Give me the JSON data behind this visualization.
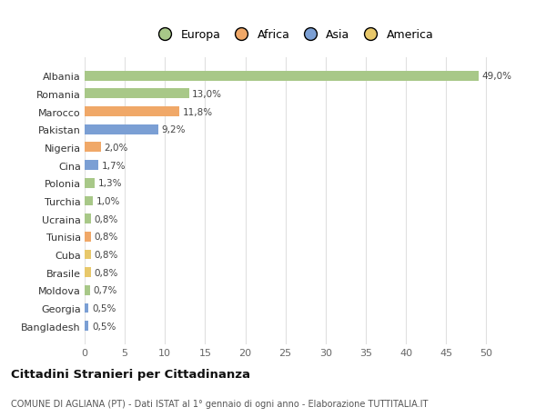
{
  "categories": [
    "Bangladesh",
    "Georgia",
    "Moldova",
    "Brasile",
    "Cuba",
    "Tunisia",
    "Ucraina",
    "Turchia",
    "Polonia",
    "Cina",
    "Nigeria",
    "Pakistan",
    "Marocco",
    "Romania",
    "Albania"
  ],
  "values": [
    0.5,
    0.5,
    0.7,
    0.8,
    0.8,
    0.8,
    0.8,
    1.0,
    1.3,
    1.7,
    2.0,
    9.2,
    11.8,
    13.0,
    49.0
  ],
  "colors": [
    "#7b9fd4",
    "#7b9fd4",
    "#a8c888",
    "#e8c86a",
    "#e8c86a",
    "#f0a868",
    "#a8c888",
    "#a8c888",
    "#a8c888",
    "#7b9fd4",
    "#f0a868",
    "#7b9fd4",
    "#f0a868",
    "#a8c888",
    "#a8c888"
  ],
  "labels": [
    "0,5%",
    "0,5%",
    "0,7%",
    "0,8%",
    "0,8%",
    "0,8%",
    "0,8%",
    "1,0%",
    "1,3%",
    "1,7%",
    "2,0%",
    "9,2%",
    "11,8%",
    "13,0%",
    "49,0%"
  ],
  "legend_names": [
    "Europa",
    "Africa",
    "Asia",
    "America"
  ],
  "legend_colors": [
    "#a8c888",
    "#f0a868",
    "#7b9fd4",
    "#e8c86a"
  ],
  "title": "Cittadini Stranieri per Cittadinanza",
  "subtitle": "COMUNE DI AGLIANA (PT) - Dati ISTAT al 1° gennaio di ogni anno - Elaborazione TUTTITALIA.IT",
  "xlim": [
    0,
    52
  ],
  "xticks": [
    0,
    5,
    10,
    15,
    20,
    25,
    30,
    35,
    40,
    45,
    50
  ],
  "background_color": "#ffffff",
  "grid_color": "#e0e0e0",
  "bar_height": 0.55
}
